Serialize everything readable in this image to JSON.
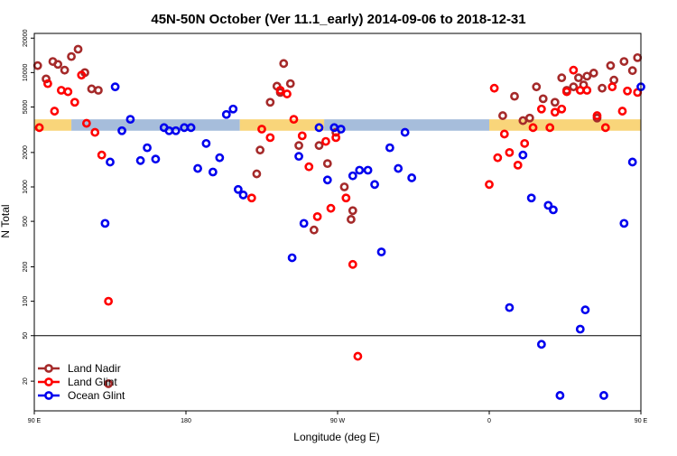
{
  "chart_data": {
    "type": "scatter",
    "title": "45N-50N October (Ver 11.1_early)   2014-09-06 to 2018-12-31",
    "xlabel": "Longitude (deg E)",
    "ylabel": "N Total",
    "y_scale": "log",
    "ylim": [
      11,
      22000
    ],
    "xlim": [
      90,
      450
    ],
    "x_ticks": [
      {
        "value": 90,
        "label": "90 E"
      },
      {
        "value": 180,
        "label": "180"
      },
      {
        "value": 270,
        "label": "90 W"
      },
      {
        "value": 360,
        "label": "0"
      },
      {
        "value": 450,
        "label": "90 E"
      },
      {
        "value": 540,
        "label": "180"
      }
    ],
    "y_ticks": [
      {
        "value": 20,
        "label": "20"
      },
      {
        "value": 50,
        "label": "50"
      },
      {
        "value": 100,
        "label": "100"
      },
      {
        "value": 200,
        "label": "200"
      },
      {
        "value": 500,
        "label": "500"
      },
      {
        "value": 1000,
        "label": "1000"
      },
      {
        "value": 2000,
        "label": "2000"
      },
      {
        "value": 5000,
        "label": "5000"
      },
      {
        "value": 10000,
        "label": "10000"
      },
      {
        "value": 20000,
        "label": "20000"
      }
    ],
    "reference_line": 50,
    "band": {
      "ymin": 3100,
      "ymax": 3900,
      "colors": [
        "#a6bddb",
        "#f9d57a"
      ]
    },
    "grid": false,
    "legend_position": "bottom-left",
    "series": [
      {
        "name": "Land Nadir",
        "color": "#a52a2a",
        "points": [
          [
            92,
            11500
          ],
          [
            97,
            8800
          ],
          [
            101,
            12500
          ],
          [
            104,
            11800
          ],
          [
            108,
            10500
          ],
          [
            112,
            13800
          ],
          [
            116,
            16000
          ],
          [
            120,
            10000
          ],
          [
            124,
            7200
          ],
          [
            128,
            7000
          ],
          [
            134,
            19
          ],
          [
            222,
            1300
          ],
          [
            224,
            2100
          ],
          [
            230,
            5500
          ],
          [
            234,
            7600
          ],
          [
            236,
            6700
          ],
          [
            238,
            12000
          ],
          [
            242,
            8000
          ],
          [
            247,
            2300
          ],
          [
            256,
            420
          ],
          [
            259,
            2300
          ],
          [
            264,
            1600
          ],
          [
            269,
            3000
          ],
          [
            274,
            1000
          ],
          [
            278,
            520
          ],
          [
            279,
            620
          ],
          [
            368,
            4200
          ],
          [
            375,
            6200
          ],
          [
            380,
            3800
          ],
          [
            384,
            4000
          ],
          [
            388,
            7500
          ],
          [
            392,
            5900
          ],
          [
            399,
            5500
          ],
          [
            403,
            9000
          ],
          [
            406,
            7000
          ],
          [
            410,
            7500
          ],
          [
            413,
            9000
          ],
          [
            416,
            7800
          ],
          [
            418,
            9300
          ],
          [
            422,
            9900
          ],
          [
            424,
            4000
          ],
          [
            427,
            7300
          ],
          [
            432,
            11500
          ],
          [
            434,
            8600
          ],
          [
            440,
            12500
          ],
          [
            445,
            10400
          ],
          [
            448,
            13500
          ],
          [
            452,
            15500
          ],
          [
            456,
            10200
          ],
          [
            460,
            7400
          ],
          [
            465,
            19
          ]
        ]
      },
      {
        "name": "Land Glint",
        "color": "#ff0000",
        "points": [
          [
            93,
            3300
          ],
          [
            98,
            8000
          ],
          [
            102,
            4600
          ],
          [
            106,
            7000
          ],
          [
            110,
            6800
          ],
          [
            114,
            5500
          ],
          [
            118,
            9500
          ],
          [
            121,
            3600
          ],
          [
            126,
            3000
          ],
          [
            130,
            1900
          ],
          [
            134,
            100
          ],
          [
            219,
            800
          ],
          [
            225,
            3200
          ],
          [
            230,
            2700
          ],
          [
            236,
            7000
          ],
          [
            240,
            6500
          ],
          [
            244,
            3900
          ],
          [
            249,
            2800
          ],
          [
            253,
            1500
          ],
          [
            258,
            550
          ],
          [
            263,
            2500
          ],
          [
            266,
            650
          ],
          [
            269,
            2700
          ],
          [
            275,
            800
          ],
          [
            279,
            210
          ],
          [
            282,
            33
          ],
          [
            360,
            1050
          ],
          [
            363,
            7300
          ],
          [
            365,
            1800
          ],
          [
            369,
            2900
          ],
          [
            372,
            2000
          ],
          [
            377,
            1550
          ],
          [
            381,
            2400
          ],
          [
            386,
            3300
          ],
          [
            391,
            4800
          ],
          [
            396,
            3300
          ],
          [
            399,
            4500
          ],
          [
            403,
            4800
          ],
          [
            406,
            6800
          ],
          [
            410,
            10500
          ],
          [
            414,
            7000
          ],
          [
            418,
            7000
          ],
          [
            424,
            4200
          ],
          [
            429,
            3300
          ],
          [
            433,
            7500
          ],
          [
            439,
            4600
          ],
          [
            442,
            6900
          ],
          [
            448,
            6700
          ],
          [
            453,
            5500
          ],
          [
            457,
            7000
          ],
          [
            462,
            3500
          ],
          [
            467,
            3000
          ],
          [
            471,
            1900
          ],
          [
            474,
            100
          ]
        ]
      },
      {
        "name": "Ocean Glint",
        "color": "#0000ee",
        "points": [
          [
            132,
            480
          ],
          [
            135,
            1650
          ],
          [
            138,
            7500
          ],
          [
            142,
            3100
          ],
          [
            147,
            3900
          ],
          [
            153,
            1700
          ],
          [
            157,
            2200
          ],
          [
            162,
            1750
          ],
          [
            167,
            3300
          ],
          [
            170,
            3100
          ],
          [
            174,
            3100
          ],
          [
            179,
            3300
          ],
          [
            183,
            3300
          ],
          [
            187,
            1450
          ],
          [
            192,
            2400
          ],
          [
            196,
            1350
          ],
          [
            200,
            1800
          ],
          [
            204,
            4300
          ],
          [
            208,
            4800
          ],
          [
            211,
            950
          ],
          [
            214,
            850
          ],
          [
            243,
            240
          ],
          [
            247,
            1850
          ],
          [
            250,
            480
          ],
          [
            259,
            3300
          ],
          [
            264,
            1150
          ],
          [
            268,
            3300
          ],
          [
            272,
            3200
          ],
          [
            279,
            1250
          ],
          [
            283,
            1400
          ],
          [
            288,
            1400
          ],
          [
            292,
            1050
          ],
          [
            296,
            270
          ],
          [
            301,
            2200
          ],
          [
            306,
            1450
          ],
          [
            310,
            3000
          ],
          [
            314,
            1200
          ],
          [
            372,
            88
          ],
          [
            380,
            1900
          ],
          [
            385,
            800
          ],
          [
            391,
            42
          ],
          [
            395,
            690
          ],
          [
            398,
            630
          ],
          [
            402,
            15
          ],
          [
            414,
            57
          ],
          [
            417,
            84
          ],
          [
            428,
            15
          ],
          [
            440,
            480
          ],
          [
            445,
            1650
          ],
          [
            450,
            7500
          ],
          [
            455,
            3000
          ],
          [
            461,
            3900
          ],
          [
            467,
            1700
          ],
          [
            471,
            2200
          ],
          [
            476,
            1750
          ],
          [
            480,
            3300
          ]
        ]
      }
    ]
  }
}
